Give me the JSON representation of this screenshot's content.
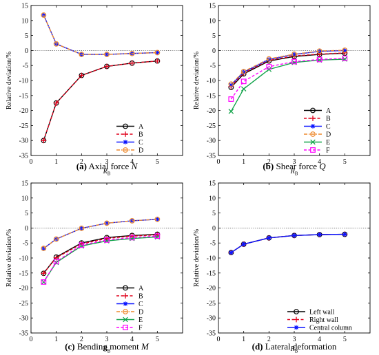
{
  "chart_data": [
    {
      "type": "line",
      "caption_letter": "(a)",
      "caption_text": " Axial force N",
      "xlabel": "R",
      "xlabel_sub": "B",
      "ylabel": "Relative deviation/%",
      "xlim": [
        0,
        6
      ],
      "ylim": [
        -35,
        15
      ],
      "xticks": [
        0,
        1,
        2,
        3,
        4,
        5
      ],
      "yticks": [
        15,
        10,
        5,
        0,
        -5,
        -10,
        -15,
        -20,
        -25,
        -30,
        -35
      ],
      "x": [
        0.5,
        1,
        2,
        3,
        4,
        5
      ],
      "legend_position": "bottom-right",
      "series": [
        {
          "name": "A",
          "values": [
            -30.0,
            -17.5,
            -8.3,
            -5.3,
            -4.2,
            -3.5
          ],
          "color": "#000000",
          "marker": "circle",
          "dash": "solid"
        },
        {
          "name": "B",
          "values": [
            -30.0,
            -17.5,
            -8.3,
            -5.3,
            -4.2,
            -3.5
          ],
          "color": "#e0001b",
          "marker": "plus",
          "dash": "dashed"
        },
        {
          "name": "C",
          "values": [
            11.8,
            2.2,
            -1.3,
            -1.3,
            -1.0,
            -0.7
          ],
          "color": "#0a14ff",
          "marker": "star",
          "dash": "solid"
        },
        {
          "name": "D",
          "values": [
            11.8,
            2.2,
            -1.3,
            -1.3,
            -1.0,
            -0.7
          ],
          "color": "#ee8a2e",
          "marker": "circle",
          "dash": "dashdot"
        }
      ]
    },
    {
      "type": "line",
      "caption_letter": "(b)",
      "caption_text": " Shear force Q",
      "xlabel": "R",
      "xlabel_sub": "B",
      "ylabel": "Relative deviation/%",
      "xlim": [
        0,
        6
      ],
      "ylim": [
        -35,
        15
      ],
      "xticks": [
        0,
        1,
        2,
        3,
        4,
        5
      ],
      "yticks": [
        15,
        10,
        5,
        0,
        -5,
        -10,
        -15,
        -20,
        -25,
        -30,
        -35
      ],
      "x": [
        0.5,
        1,
        2,
        3,
        4,
        5
      ],
      "legend_position": "bottom-right",
      "series": [
        {
          "name": "A",
          "values": [
            -12.3,
            -7.8,
            -3.5,
            -2.0,
            -1.3,
            -0.9
          ],
          "color": "#000000",
          "marker": "circle",
          "dash": "solid"
        },
        {
          "name": "B",
          "values": [
            -12.0,
            -7.5,
            -3.3,
            -1.8,
            -1.2,
            -0.8
          ],
          "color": "#e0001b",
          "marker": "plus",
          "dash": "dashed"
        },
        {
          "name": "C",
          "values": [
            -11.5,
            -7.2,
            -3.0,
            -1.3,
            -0.3,
            0.0
          ],
          "color": "#0a14ff",
          "marker": "star",
          "dash": "solid"
        },
        {
          "name": "D",
          "values": [
            -11.2,
            -7.0,
            -2.8,
            -1.2,
            -0.2,
            0.1
          ],
          "color": "#ee8a2e",
          "marker": "circle",
          "dash": "dashdot"
        },
        {
          "name": "E",
          "values": [
            -20.3,
            -12.8,
            -6.3,
            -4.0,
            -3.2,
            -2.9
          ],
          "color": "#12a34a",
          "marker": "x",
          "dash": "solid"
        },
        {
          "name": "F",
          "values": [
            -16.2,
            -10.3,
            -5.4,
            -3.7,
            -3.0,
            -2.6
          ],
          "color": "#ff00ff",
          "marker": "square",
          "dash": "dashed"
        }
      ]
    },
    {
      "type": "line",
      "caption_letter": "(c)",
      "caption_text": " Bending moment M",
      "xlabel": "R",
      "xlabel_sub": "B",
      "ylabel": "Relative deviation/%",
      "xlim": [
        0,
        6
      ],
      "ylim": [
        -35,
        15
      ],
      "xticks": [
        0,
        1,
        2,
        3,
        4,
        5
      ],
      "yticks": [
        15,
        10,
        5,
        0,
        -5,
        -10,
        -15,
        -20,
        -25,
        -30,
        -35
      ],
      "x": [
        0.5,
        1,
        2,
        3,
        4,
        5
      ],
      "legend_position": "bottom-right",
      "series": [
        {
          "name": "A",
          "values": [
            -15.1,
            -9.7,
            -5.0,
            -3.2,
            -2.5,
            -2.1
          ],
          "color": "#000000",
          "marker": "circle",
          "dash": "solid"
        },
        {
          "name": "B",
          "values": [
            -15.1,
            -9.9,
            -5.3,
            -3.5,
            -2.7,
            -2.3
          ],
          "color": "#e0001b",
          "marker": "plus",
          "dash": "dashed"
        },
        {
          "name": "C",
          "values": [
            -6.8,
            -3.7,
            -0.1,
            1.6,
            2.4,
            2.9
          ],
          "color": "#0a14ff",
          "marker": "star",
          "dash": "solid"
        },
        {
          "name": "D",
          "values": [
            -6.8,
            -3.7,
            -0.1,
            1.6,
            2.4,
            2.9
          ],
          "color": "#ee8a2e",
          "marker": "circle",
          "dash": "dashdot"
        },
        {
          "name": "E",
          "values": [
            -18.0,
            -11.5,
            -6.0,
            -4.3,
            -3.5,
            -3.0
          ],
          "color": "#12a34a",
          "marker": "x",
          "dash": "solid"
        },
        {
          "name": "F",
          "values": [
            -18.0,
            -11.2,
            -5.7,
            -4.0,
            -3.2,
            -2.7
          ],
          "color": "#ff00ff",
          "marker": "square",
          "dash": "dashed"
        }
      ]
    },
    {
      "type": "line",
      "caption_letter": "(d)",
      "caption_text": " Lateral deformation",
      "xlabel": "R",
      "xlabel_sub": "B",
      "ylabel": "Relative deviation/%",
      "xlim": [
        0,
        6
      ],
      "ylim": [
        -35,
        15
      ],
      "xticks": [
        0,
        1,
        2,
        3,
        4,
        5
      ],
      "yticks": [
        15,
        10,
        5,
        0,
        -5,
        -10,
        -15,
        -20,
        -25,
        -30,
        -35
      ],
      "x": [
        0.5,
        1,
        2,
        3,
        4,
        5
      ],
      "legend_position": "bottom-right",
      "series": [
        {
          "name": "Left wall",
          "values": [
            -8.2,
            -5.4,
            -3.3,
            -2.5,
            -2.2,
            -2.1
          ],
          "color": "#000000",
          "marker": "circle",
          "dash": "solid"
        },
        {
          "name": "Right wall",
          "values": [
            -8.2,
            -5.4,
            -3.3,
            -2.5,
            -2.2,
            -2.1
          ],
          "color": "#e0001b",
          "marker": "plus",
          "dash": "dashed"
        },
        {
          "name": "Central column",
          "values": [
            -8.2,
            -5.4,
            -3.3,
            -2.5,
            -2.2,
            -2.1
          ],
          "color": "#0a14ff",
          "marker": "star",
          "dash": "solid"
        }
      ]
    }
  ]
}
